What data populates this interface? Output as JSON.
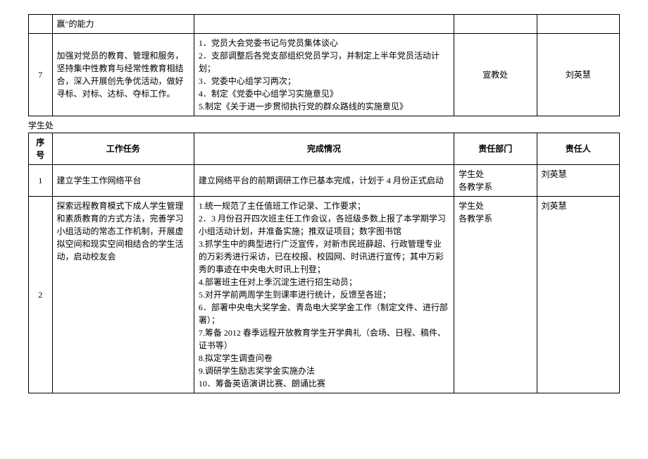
{
  "table1": {
    "rows": [
      {
        "num": "",
        "task": "赢\"的能力",
        "completion": "",
        "dept": "",
        "person": ""
      },
      {
        "num": "7",
        "task": "加强对党员的教育、管理和服务，坚持集中性教育与经常性教育相结合，深入开展创先争优活动，做好寻标、对标、达标、夺标工作。",
        "completion": "1．党员大会党委书记与党员集体谈心\n2．支部调整后各党支部组织党员学习，并制定上半年党员活动计划；\n3．党委中心组学习两次；\n4．制定《党委中心组学习实施意见》\n5.制定《关于进一步贯彻执行党的群众路线的实施意见》",
        "dept": "宣教处",
        "person": "刘英慧"
      }
    ]
  },
  "section2_label": "学生处",
  "table2": {
    "headers": {
      "num": "序号",
      "task": "工作任务",
      "completion": "完成情况",
      "dept": "责任部门",
      "person": "责任人"
    },
    "rows": [
      {
        "num": "1",
        "task": "建立学生工作网络平台",
        "completion": "建立网络平台的前期调研工作已基本完成，计划于 4 月份正式启动",
        "dept": "学生处\n各教学系",
        "person": "刘英慧"
      },
      {
        "num": "2",
        "task": "探索远程教育模式下成人学生管理和素质教育的方式方法，完善学习小组活动的常态工作机制，开展虚拟空间和现实空间相结合的学生活动，启动校友会",
        "completion": "1.统一规范了主任值班工作记录、工作要求；\n2．3 月份召开四次班主任工作会议，各班级多数上报了本学期学习小组活动计划，并准备实施；推双证项目；数字图书馆\n3.抓学生中的典型进行广泛宣传，对新市民班薛超、行政管理专业的万彩秀进行采访，已在校报、校园网、时讯进行宣传；其中万彩秀的事迹在中央电大时讯上刊登；\n4.部署班主任对上季沉淀生进行招生动员；\n5.对开学前两周学生到课率进行统计，反馈至各班；\n6．部署中央电大奖学金、青岛电大奖学金工作（制定文件、进行部署）；\n7.筹备 2012 春季远程开放教育学生开学典礼（会场、日程、稿件、证书等）\n8.拟定学生调查问卷\n9.调研学生励志奖学金实施办法\n10．筹备英语演讲比赛、朗诵比赛",
        "dept": "学生处\n各教学系",
        "person": "刘英慧"
      }
    ]
  }
}
